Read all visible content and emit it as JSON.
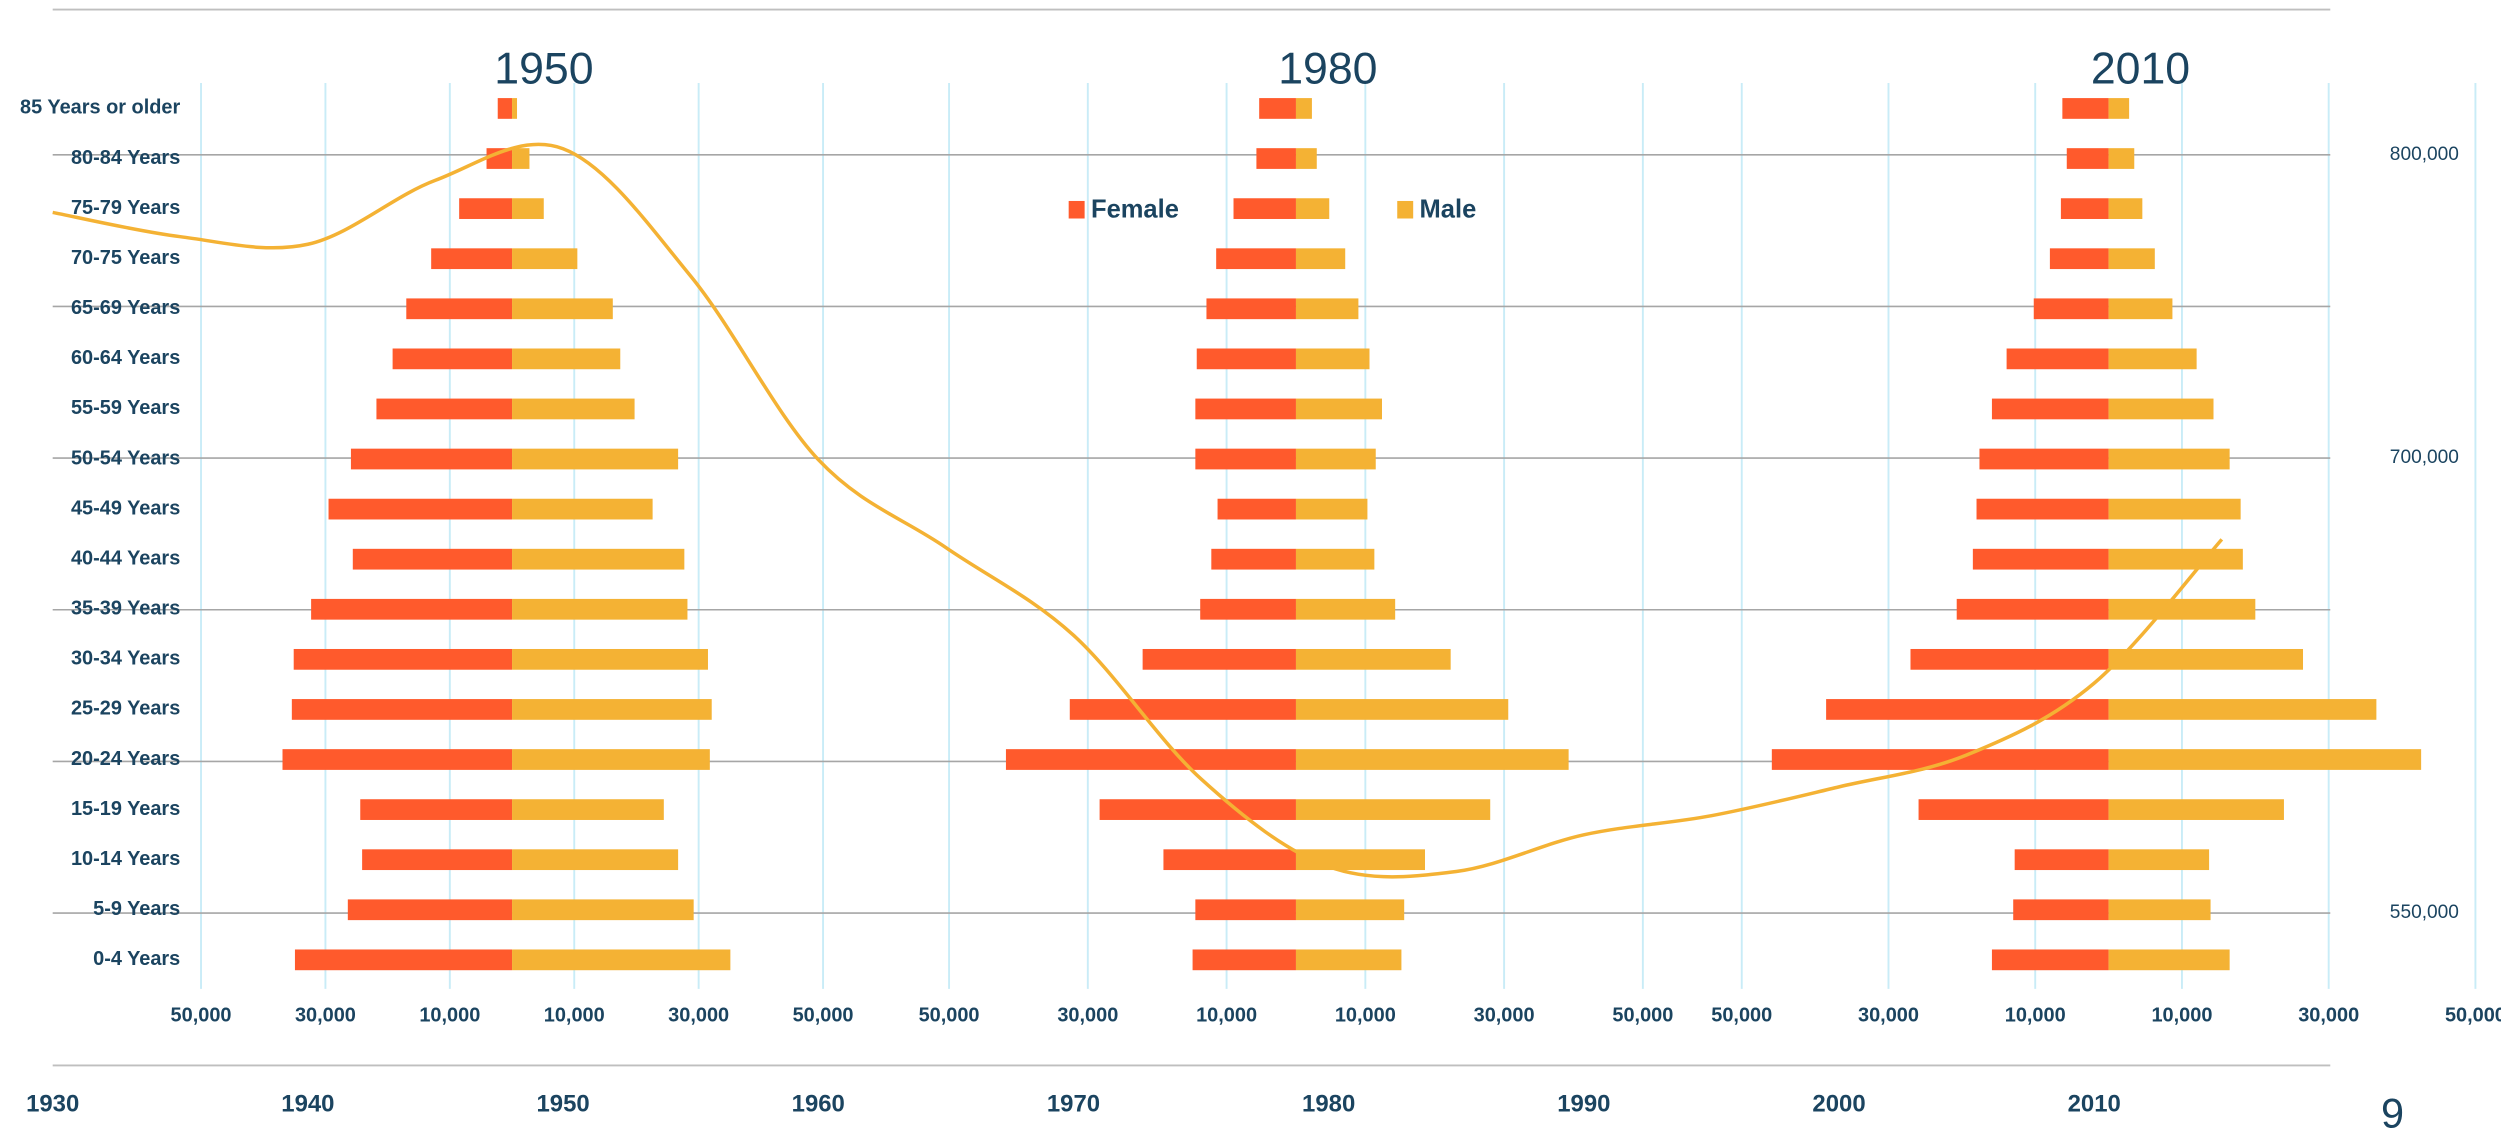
{
  "chart_data": [
    {
      "type": "pyramid",
      "categories": [
        "85 Years or older",
        "80-84 Years",
        "75-79 Years",
        "70-75 Years",
        "65-69 Years",
        "60-64 Years",
        "55-59 Years",
        "50-54 Years",
        "45-49 Years",
        "40-44 Years",
        "35-39 Years",
        "30-34 Years",
        "25-29 Years",
        "20-24 Years",
        "15-19 Years",
        "10-14 Years",
        "5-9 Years",
        "0-4 Years"
      ],
      "series": [
        {
          "name": "Female",
          "color": "#ff5a2c"
        },
        {
          "name": "Male",
          "color": "#f4b234"
        }
      ],
      "grid": true,
      "panels": [
        {
          "title": "1950",
          "xlim": [
            -50000,
            50000
          ],
          "xticks": [
            {
              "value": -50000,
              "label": "50,000"
            },
            {
              "value": -30000,
              "label": "30,000"
            },
            {
              "value": -10000,
              "label": "10,000"
            },
            {
              "value": 10000,
              "label": "10,000"
            },
            {
              "value": 30000,
              "label": "30,000"
            },
            {
              "value": 50000,
              "label": "50,000"
            }
          ],
          "series": [
            {
              "values": [
                2300,
                4100,
                8500,
                13000,
                17000,
                19200,
                21800,
                25900,
                29500,
                25600,
                32300,
                35100,
                35400,
                36900,
                24400,
                24100,
                26400,
                34900
              ]
            },
            {
              "values": [
                800,
                2800,
                5100,
                10500,
                16200,
                17400,
                19700,
                26700,
                22600,
                27700,
                28200,
                31500,
                32100,
                31800,
                24400,
                26700,
                29200,
                35100
              ]
            }
          ]
        },
        {
          "title": "1980",
          "xlim": [
            -50000,
            50000
          ],
          "xticks": [
            {
              "value": -50000,
              "label": "50,000"
            },
            {
              "value": -30000,
              "label": "30,000"
            },
            {
              "value": -10000,
              "label": "10,000"
            },
            {
              "value": 10000,
              "label": "10,000"
            },
            {
              "value": 30000,
              "label": "30,000"
            },
            {
              "value": 50000,
              "label": "50,000"
            }
          ],
          "series": [
            {
              "values": [
                5300,
                5700,
                9000,
                11500,
                12900,
                14300,
                14500,
                14500,
                11300,
                12200,
                13800,
                22100,
                32600,
                41800,
                28300,
                19100,
                14500,
                14900
              ]
            },
            {
              "values": [
                2300,
                3000,
                4800,
                7100,
                9000,
                10600,
                12400,
                11500,
                10300,
                11300,
                14300,
                22300,
                30600,
                39300,
                28000,
                18600,
                15600,
                15200
              ]
            }
          ]
        },
        {
          "title": "2010",
          "xlim": [
            -50000,
            50000
          ],
          "xticks": [
            {
              "value": -50000,
              "label": "50,000"
            },
            {
              "value": -30000,
              "label": "30,000"
            },
            {
              "value": -10000,
              "label": "10,000"
            },
            {
              "value": 10000,
              "label": "10,000"
            },
            {
              "value": 30000,
              "label": "30,000"
            },
            {
              "value": 50000,
              "label": "50,000"
            }
          ],
          "series": [
            {
              "values": [
                6300,
                5700,
                6500,
                8000,
                10200,
                13900,
                15900,
                17600,
                18000,
                18500,
                20700,
                27000,
                38500,
                45900,
                25900,
                12800,
                13000,
                15900
              ]
            },
            {
              "values": [
                2800,
                3500,
                4600,
                6300,
                8700,
                12000,
                14300,
                16500,
                18000,
                18300,
                20000,
                26500,
                36500,
                42600,
                23900,
                13700,
                13900,
                16500
              ]
            }
          ]
        }
      ]
    },
    {
      "type": "line",
      "x": [
        1930,
        1935,
        1940,
        1945,
        1950,
        1955,
        1960,
        1965,
        1970,
        1975,
        1980,
        1985,
        1990,
        1995,
        2000,
        2005,
        2010,
        2015
      ],
      "series": [
        {
          "color": "#f4b234",
          "axis": "y2",
          "values": [
            781000,
            773000,
            770500,
            791600,
            802000,
            760000,
            699500,
            670500,
            641600,
            594200,
            565300,
            563700,
            575800,
            582100,
            591600,
            602100,
            625800,
            673200
          ]
        }
      ],
      "xlim": [
        1930,
        2020
      ],
      "xticks": [
        1930,
        1940,
        1950,
        1960,
        1970,
        1980,
        1990,
        2000,
        2010
      ],
      "y2lim": [
        525000,
        830000
      ],
      "y2ticks": [
        {
          "value": 550000,
          "label": "550,000"
        },
        {
          "value": 600000,
          "label": null
        },
        {
          "value": 650000,
          "label": null
        },
        {
          "value": 700000,
          "label": "700,000"
        },
        {
          "value": 750000,
          "label": null
        },
        {
          "value": 800000,
          "label": "800,000"
        }
      ],
      "grid": true
    },
    {
      "type": "page-number",
      "text": "9"
    }
  ]
}
